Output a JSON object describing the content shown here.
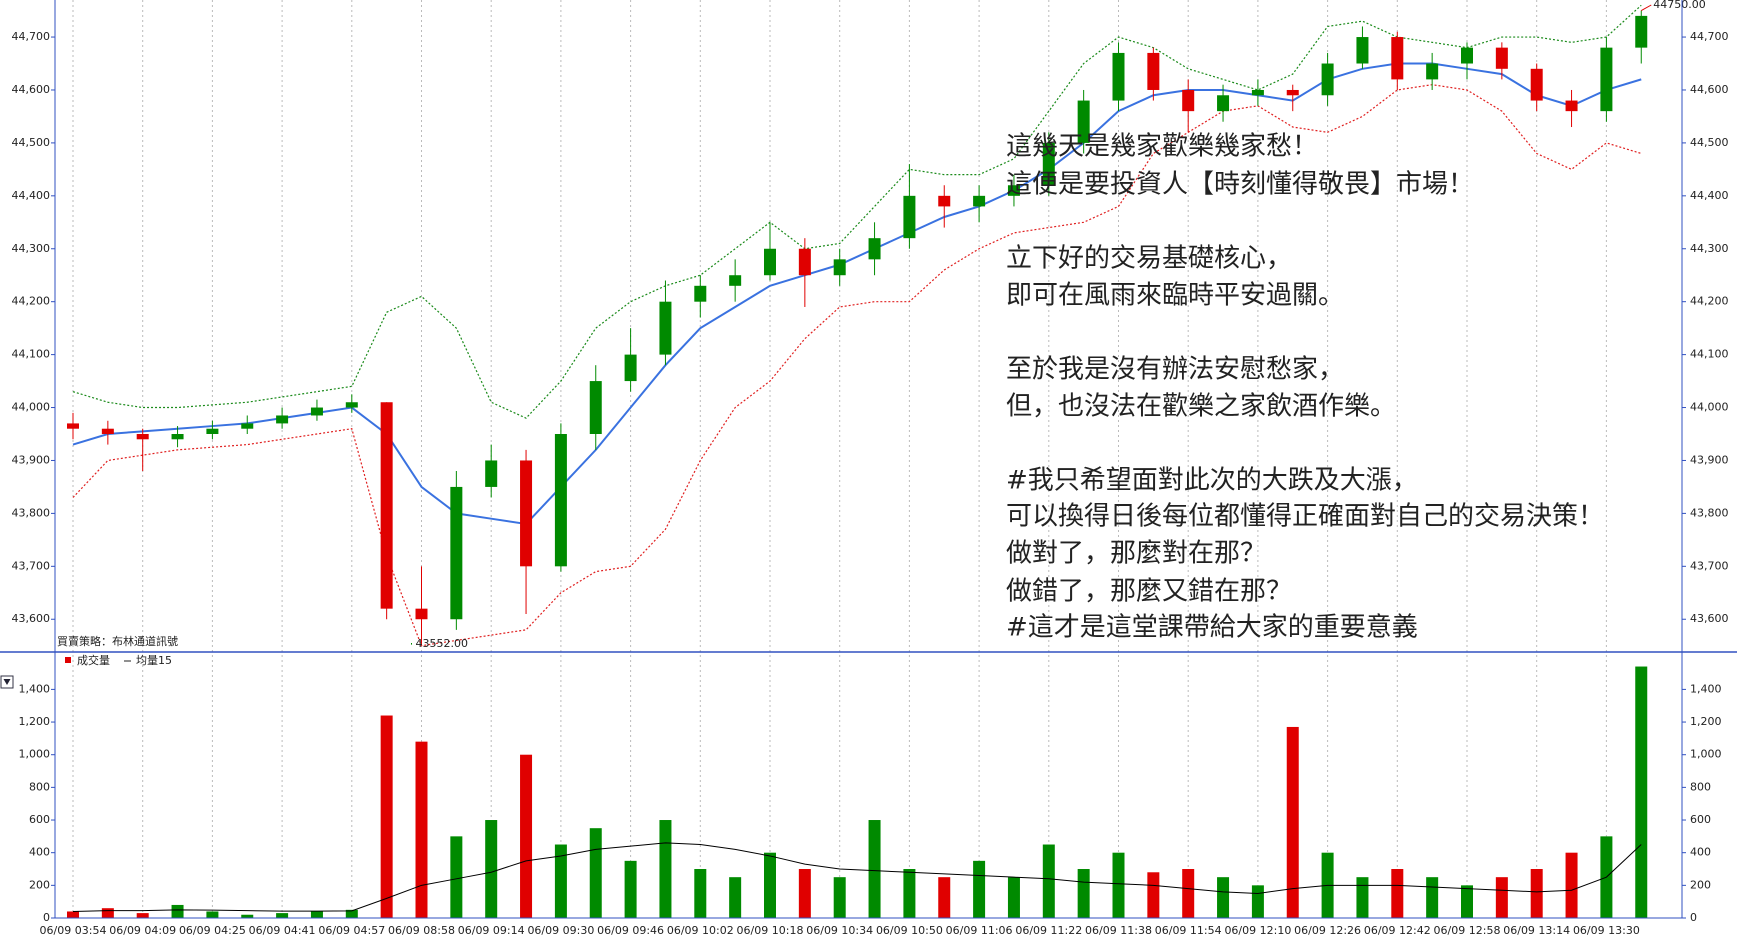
{
  "chart_data": [
    {
      "type": "candlestick",
      "strategy_label": "買賣策略：布林通道訊號",
      "high_label": "44750.00",
      "low_label": "43552.00",
      "up_color": "#008a00",
      "down_color": "#e00000",
      "open": [
        43970,
        43960,
        43950,
        43940,
        43950,
        43960,
        43970,
        43985,
        44000,
        44010,
        43620,
        43600,
        43850,
        43900,
        43700,
        43950,
        44050,
        44100,
        44200,
        44230,
        44250,
        44300,
        44250,
        44280,
        44320,
        44400,
        44380,
        44400,
        44420,
        44500,
        44580,
        44670,
        44600,
        44560,
        44590,
        44600,
        44590,
        44650,
        44700,
        44620,
        44650,
        44680,
        44640,
        44580,
        44560,
        44680
      ],
      "high": [
        43990,
        43975,
        43960,
        43965,
        43975,
        43985,
        44000,
        44015,
        44025,
        44010,
        43700,
        43880,
        43930,
        43920,
        43970,
        44080,
        44150,
        44240,
        44250,
        44280,
        44350,
        44320,
        44300,
        44350,
        44460,
        44420,
        44420,
        44440,
        44520,
        44600,
        44690,
        44680,
        44620,
        44610,
        44620,
        44610,
        44670,
        44720,
        44710,
        44670,
        44690,
        44690,
        44650,
        44600,
        44700,
        44750
      ],
      "low": [
        43940,
        43930,
        43880,
        43925,
        43940,
        43950,
        43960,
        43975,
        43990,
        43600,
        43552,
        43580,
        43830,
        43610,
        43690,
        43920,
        44030,
        44080,
        44170,
        44200,
        44240,
        44190,
        44230,
        44250,
        44300,
        44340,
        44350,
        44380,
        44400,
        44480,
        44560,
        44580,
        44520,
        44540,
        44570,
        44560,
        44570,
        44640,
        44600,
        44600,
        44620,
        44620,
        44560,
        44530,
        44540,
        44650
      ],
      "close": [
        43960,
        43950,
        43940,
        43950,
        43960,
        43970,
        43985,
        44000,
        44010,
        43620,
        43600,
        43850,
        43900,
        43700,
        43950,
        44050,
        44100,
        44200,
        44230,
        44250,
        44300,
        44250,
        44280,
        44320,
        44400,
        44380,
        44400,
        44420,
        44500,
        44580,
        44670,
        44600,
        44560,
        44590,
        44600,
        44590,
        44650,
        44700,
        44620,
        44650,
        44680,
        44640,
        44580,
        44560,
        44680,
        44740
      ],
      "lines": [
        {
          "color": "#3a72e0",
          "dashed": false,
          "values": [
            43930,
            43950,
            43955,
            43960,
            43965,
            43970,
            43980,
            43990,
            44000,
            43950,
            43850,
            43800,
            43790,
            43780,
            43850,
            43920,
            44000,
            44080,
            44150,
            44190,
            44230,
            44250,
            44270,
            44300,
            44330,
            44360,
            44380,
            44410,
            44450,
            44500,
            44560,
            44590,
            44600,
            44600,
            44590,
            44580,
            44620,
            44640,
            44650,
            44650,
            44640,
            44630,
            44590,
            44570,
            44600,
            44620
          ]
        },
        {
          "color": "#1a8a1a",
          "dashed": true,
          "values": [
            44030,
            44010,
            44000,
            44000,
            44005,
            44010,
            44020,
            44030,
            44040,
            44180,
            44210,
            44150,
            44010,
            43980,
            44050,
            44150,
            44200,
            44230,
            44250,
            44300,
            44350,
            44300,
            44310,
            44380,
            44450,
            44440,
            44440,
            44470,
            44560,
            44650,
            44700,
            44680,
            44640,
            44620,
            44600,
            44630,
            44720,
            44730,
            44700,
            44690,
            44680,
            44700,
            44700,
            44690,
            44700,
            44760
          ]
        },
        {
          "color": "#e02020",
          "dashed": true,
          "values": [
            43830,
            43900,
            43910,
            43920,
            43925,
            43930,
            43940,
            43950,
            43960,
            43720,
            43550,
            43560,
            43570,
            43580,
            43650,
            43690,
            43700,
            43770,
            43900,
            44000,
            44050,
            44130,
            44190,
            44200,
            44200,
            44260,
            44300,
            44330,
            44340,
            44350,
            44380,
            44480,
            44520,
            44560,
            44570,
            44530,
            44520,
            44550,
            44600,
            44610,
            44600,
            44560,
            44480,
            44450,
            44500,
            44480
          ]
        }
      ],
      "ylim": [
        43540,
        44770
      ],
      "yticks": [
        {
          "value": 43600,
          "label": "43,600"
        },
        {
          "value": 43700,
          "label": "43,700"
        },
        {
          "value": 43800,
          "label": "43,800"
        },
        {
          "value": 43900,
          "label": "43,900"
        },
        {
          "value": 44000,
          "label": "44,000"
        },
        {
          "value": 44100,
          "label": "44,100"
        },
        {
          "value": 44200,
          "label": "44,200"
        },
        {
          "value": 44300,
          "label": "44,300"
        },
        {
          "value": 44400,
          "label": "44,400"
        },
        {
          "value": 44500,
          "label": "44,500"
        },
        {
          "value": 44600,
          "label": "44,600"
        },
        {
          "value": 44700,
          "label": "44,700"
        }
      ],
      "annotations": [
        "這幾天是幾家歡樂幾家愁！",
        "這便是要投資人【時刻懂得敬畏】市場！",
        "立下好的交易基礎核心，",
        "即可在風雨來臨時平安過關。",
        "至於我是沒有辦法安慰愁家，",
        "但，也沒法在歡樂之家飲酒作樂。",
        "#我只希望面對此次的大跌及大漲，",
        "可以換得日後每位都懂得正確面對自己的交易決策！",
        "做對了，那麼對在那？",
        "做錯了，那麼又錯在那？",
        "#這才是這堂課帶給大家的重要意義"
      ],
      "annotation_color": "#1a3ad8"
    },
    {
      "type": "bar",
      "categories": [
        "06/09 03:54",
        null,
        "06/09 04:09",
        null,
        "06/09 04:25",
        null,
        "06/09 04:41",
        null,
        "06/09 04:57",
        null,
        "06/09 08:58",
        null,
        "06/09 09:14",
        null,
        "06/09 09:30",
        null,
        "06/09 09:46",
        null,
        "06/09 10:02",
        null,
        "06/09 10:18",
        null,
        "06/09 10:34",
        null,
        "06/09 10:50",
        null,
        "06/09 11:06",
        null,
        "06/09 11:22",
        null,
        "06/09 11:38",
        null,
        "06/09 11:54",
        null,
        "06/09 12:10",
        null,
        "06/09 12:26",
        null,
        "06/09 12:42",
        null,
        "06/09 12:58",
        null,
        "06/09 13:14",
        null,
        "06/09 13:30",
        null
      ],
      "series": [
        {
          "name": "成交量",
          "color": "#e00000",
          "values": [
            40,
            60,
            30,
            80,
            40,
            20,
            30,
            40,
            50,
            1240,
            1080,
            500,
            600,
            1000,
            450,
            550,
            350,
            600,
            300,
            250,
            400,
            300,
            250,
            600,
            300,
            250,
            350,
            250,
            450,
            300,
            400,
            280,
            300,
            250,
            200,
            1170,
            400,
            250,
            300,
            250,
            200,
            250,
            300,
            400,
            500,
            1540
          ]
        },
        {
          "name": "均量15",
          "color": "#000000",
          "values": [
            40,
            45,
            45,
            50,
            48,
            45,
            42,
            42,
            44,
            120,
            200,
            240,
            280,
            350,
            380,
            420,
            440,
            460,
            450,
            420,
            380,
            330,
            300,
            290,
            280,
            270,
            260,
            250,
            240,
            220,
            210,
            200,
            180,
            160,
            150,
            180,
            200,
            200,
            200,
            190,
            180,
            170,
            160,
            170,
            250,
            450
          ]
        }
      ],
      "ylim": [
        0,
        1580
      ],
      "yticks": [
        0,
        200,
        400,
        600,
        800,
        {
          "value": 1000,
          "label": "1,000"
        },
        {
          "value": 1200,
          "label": "1,200"
        },
        {
          "value": 1400,
          "label": "1,400"
        }
      ]
    }
  ]
}
